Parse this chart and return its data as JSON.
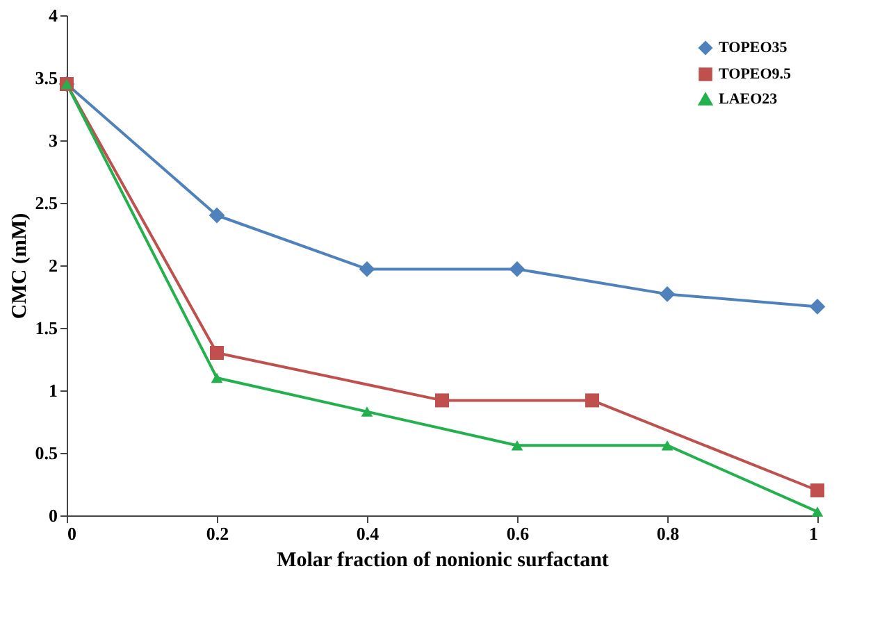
{
  "chart_data": {
    "type": "line",
    "xlabel": "Molar fraction of nonionic surfactant",
    "ylabel": "CMC (mM)",
    "xlim": [
      0,
      1
    ],
    "xticks": [
      0,
      0.2,
      0.4,
      0.6,
      0.8,
      1
    ],
    "ylim": [
      0,
      4
    ],
    "yticks": [
      0,
      0.5,
      1,
      1.5,
      2,
      2.5,
      3,
      3.5,
      4
    ],
    "grid": false,
    "legend": "top right",
    "line_style": "solid",
    "series": [
      {
        "name": "TOPEO35",
        "color": "#4f81bd",
        "marker": "diamond",
        "x": [
          0,
          0.2,
          0.4,
          0.6,
          0.8,
          1
        ],
        "values": [
          3.45,
          2.4,
          1.97,
          1.97,
          1.77,
          1.67
        ]
      },
      {
        "name": "TOPEO9.5",
        "color": "#c0504d",
        "marker": "square",
        "x": [
          0,
          0.2,
          0.5,
          0.7,
          1
        ],
        "values": [
          3.45,
          1.3,
          0.92,
          0.92,
          0.2
        ]
      },
      {
        "name": "LAEO23",
        "color": "#22b14c",
        "marker": "triangle",
        "x": [
          0,
          0.2,
          0.4,
          0.6,
          0.8,
          1
        ],
        "values": [
          3.45,
          1.1,
          0.83,
          0.56,
          0.56,
          0.03
        ]
      }
    ]
  }
}
